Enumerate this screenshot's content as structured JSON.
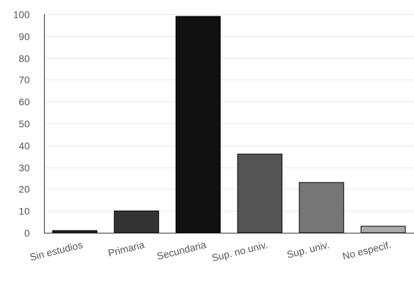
{
  "chart_data": {
    "type": "bar",
    "categories": [
      "Sin estudios",
      "Primaria",
      "Secundaria",
      "Sup. no univ.",
      "Sup. univ.",
      "No especif."
    ],
    "values": [
      1,
      10,
      99,
      36,
      23,
      3
    ],
    "bar_colors": [
      "#222222",
      "#333333",
      "#111111",
      "#555555",
      "#777777",
      "#aaaaaa"
    ],
    "ylim": [
      0,
      100
    ],
    "yticks": [
      0,
      10,
      20,
      30,
      40,
      50,
      60,
      70,
      80,
      90,
      100
    ],
    "grid": true,
    "legend": "none"
  }
}
